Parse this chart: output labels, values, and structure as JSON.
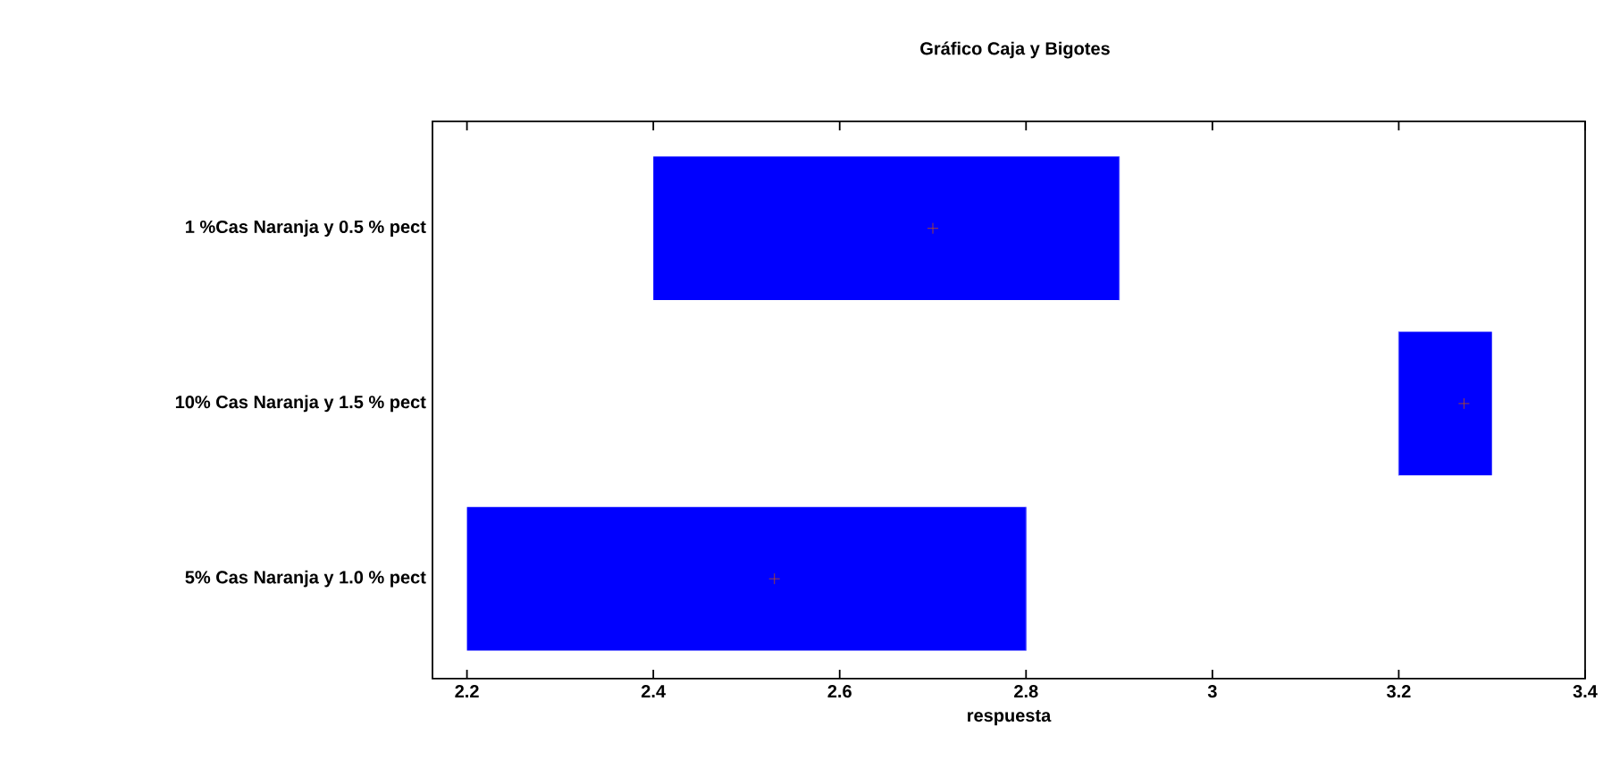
{
  "chart_data": {
    "type": "box",
    "orientation": "horizontal",
    "title": "Gráfico Caja y Bigotes",
    "xlabel": "respuesta",
    "categories": [
      "1 %Cas Naranja y 0.5 % pect",
      "10% Cas Naranja y 1.5 % pect",
      "5% Cas Naranja y 1.0 % pect"
    ],
    "series": [
      {
        "color": "#0000ff",
        "boxes": [
          {
            "low": 2.4,
            "q1": 2.4,
            "median": 2.9,
            "q3": 2.9,
            "high": 2.9,
            "mean": 2.7
          },
          {
            "low": 3.2,
            "q1": 3.2,
            "median": 3.2,
            "q3": 3.3,
            "high": 3.3,
            "mean": 3.27
          },
          {
            "low": 2.2,
            "q1": 2.2,
            "median": 2.8,
            "q3": 2.8,
            "high": 2.8,
            "mean": 2.53
          }
        ]
      }
    ],
    "xlim": [
      2.163,
      3.4
    ],
    "xticks": [
      2.2,
      2.4,
      2.6,
      2.8,
      3,
      3.2,
      3.4
    ],
    "grid": false,
    "marker": "cross"
  }
}
